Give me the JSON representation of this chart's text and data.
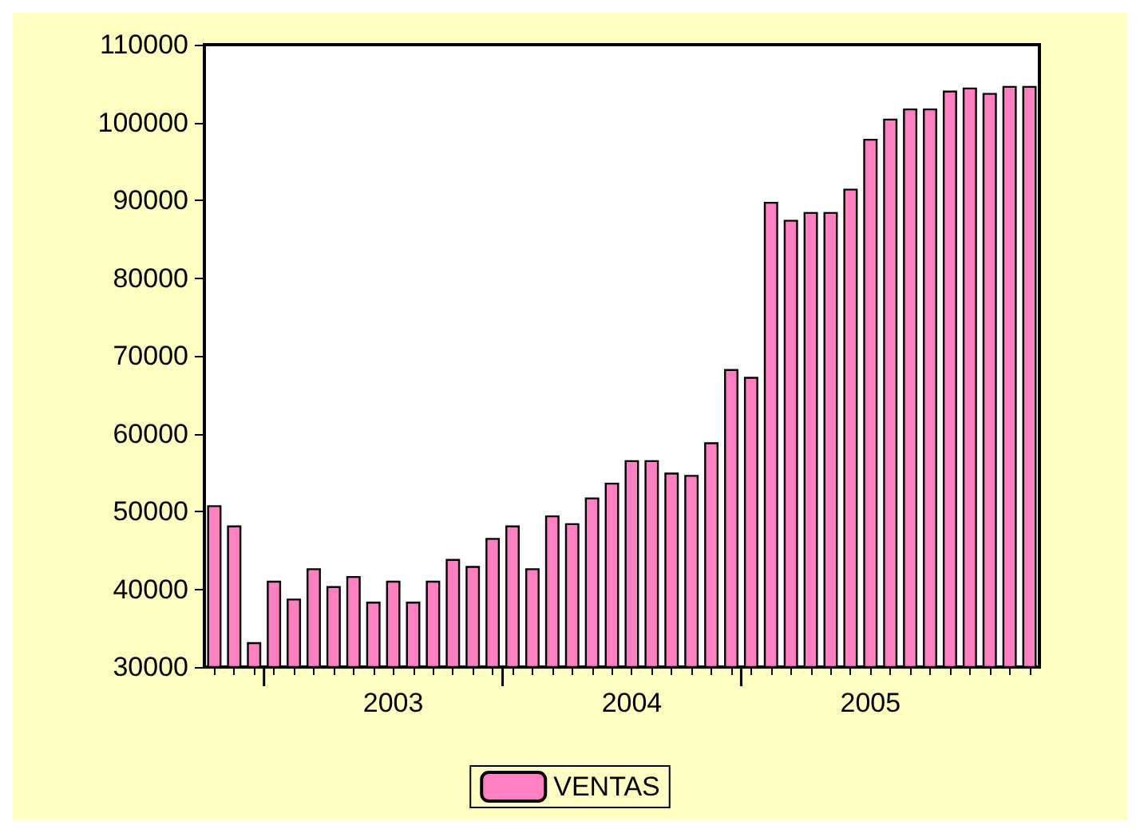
{
  "chart_data": {
    "type": "bar",
    "categories": [
      null,
      null,
      null,
      null,
      null,
      null,
      null,
      null,
      null,
      "2003",
      null,
      null,
      null,
      null,
      null,
      null,
      null,
      null,
      null,
      null,
      null,
      "2004",
      null,
      null,
      null,
      null,
      null,
      null,
      null,
      null,
      null,
      null,
      null,
      "2005",
      null,
      null,
      null,
      null,
      null,
      null,
      null,
      null
    ],
    "series": [
      {
        "name": "VENTAS",
        "color": "#ff80c0",
        "values": [
          50800,
          48200,
          33200,
          41100,
          38800,
          42700,
          40400,
          41700,
          38400,
          41100,
          38400,
          41100,
          43900,
          43000,
          46600,
          48200,
          42700,
          49500,
          48500,
          51800,
          53700,
          56600,
          56600,
          55000,
          54700,
          58900,
          68300,
          67300,
          89800,
          87500,
          88500,
          88500,
          91500,
          97900,
          100500,
          101800,
          101800,
          104100,
          104500,
          103800,
          104700,
          104700
        ]
      }
    ],
    "ylim": [
      30000,
      110000
    ],
    "yticks": [
      30000,
      40000,
      50000,
      60000,
      70000,
      80000,
      90000,
      100000,
      110000
    ],
    "grid": false,
    "legend": "bottom"
  }
}
